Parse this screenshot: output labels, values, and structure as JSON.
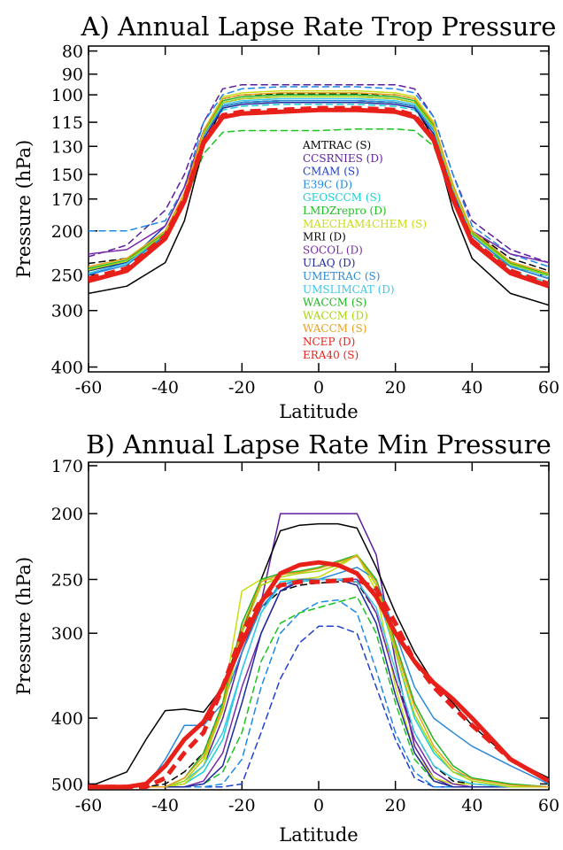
{
  "chart_data": [
    {
      "type": "line",
      "title": "A) Annual Lapse Rate Trop Pressure",
      "xlabel": "Latitude",
      "ylabel": "Pressure (hPa)",
      "xlim": [
        -60,
        60
      ],
      "ylim": [
        410,
        78
      ],
      "yscale": "log",
      "x_ticks": [
        "-60",
        "-40",
        "-20",
        "0",
        "20",
        "40",
        "60"
      ],
      "y_ticks": [
        "80",
        "90",
        "100",
        "115",
        "130",
        "150",
        "170",
        "200",
        "250",
        "300",
        "400"
      ],
      "legend_position": "center",
      "x": [
        -60,
        -50,
        -40,
        -35,
        -30,
        -25,
        -20,
        -10,
        0,
        10,
        20,
        25,
        30,
        35,
        40,
        50,
        60
      ],
      "series": [
        {
          "name": "AMTRAC (S)",
          "color": "#000000",
          "dash": true,
          "values": [
            236,
            230,
            205,
            165,
            120,
            102,
            100,
            99.5,
            99.5,
            99.5,
            100,
            102,
            118,
            160,
            200,
            230,
            245
          ]
        },
        {
          "name": "CCSRNIES (D)",
          "color": "#5a1e9e",
          "dash": true,
          "values": [
            228,
            215,
            180,
            150,
            115,
            97,
            95,
            95,
            95,
            95,
            95,
            97,
            112,
            150,
            190,
            220,
            235
          ]
        },
        {
          "name": "CMAM (S)",
          "color": "#1f3fcc",
          "dash": false,
          "values": [
            250,
            235,
            195,
            160,
            122,
            106,
            104,
            103,
            103,
            103,
            104,
            106,
            120,
            160,
            205,
            240,
            255
          ]
        },
        {
          "name": "E39C (D)",
          "color": "#1e88e5",
          "dash": true,
          "values": [
            200,
            200,
            190,
            160,
            115,
            100,
            97,
            96,
            96,
            96,
            97,
            99,
            112,
            150,
            195,
            225,
            240
          ]
        },
        {
          "name": "GEOSCCM (S)",
          "color": "#18d0d8",
          "dash": true,
          "values": [
            245,
            235,
            205,
            170,
            125,
            108,
            106,
            105,
            105,
            105,
            106,
            108,
            122,
            165,
            210,
            245,
            260
          ]
        },
        {
          "name": "LMDZrepro (D)",
          "color": "#19c41e",
          "dash": true,
          "values": [
            245,
            235,
            210,
            175,
            135,
            121,
            120,
            120,
            120,
            119,
            119,
            120,
            130,
            170,
            210,
            240,
            250
          ]
        },
        {
          "name": "MAECHAM4CHEM (S)",
          "color": "#c8de10",
          "dash": false,
          "values": [
            240,
            230,
            200,
            165,
            120,
            101,
            99,
            98,
            98,
            98,
            99,
            101,
            115,
            160,
            200,
            235,
            250
          ]
        },
        {
          "name": "MRI (D)",
          "color": "#000000",
          "dash": false,
          "values": [
            275,
            265,
            235,
            190,
            130,
            106,
            104,
            103,
            103,
            103,
            104,
            106,
            125,
            180,
            230,
            275,
            292
          ]
        },
        {
          "name": "SOCOL (D)",
          "color": "#7a2aa6",
          "dash": false,
          "values": [
            225,
            220,
            195,
            160,
            120,
            104,
            102,
            101,
            101,
            101,
            102,
            104,
            118,
            160,
            200,
            225,
            235
          ]
        },
        {
          "name": "ULAQ (D)",
          "color": "#1f2a9e",
          "dash": false,
          "values": [
            245,
            235,
            205,
            170,
            125,
            107,
            105,
            104,
            104,
            104,
            105,
            107,
            122,
            165,
            205,
            240,
            255
          ]
        },
        {
          "name": "UMETRAC (S)",
          "color": "#2a8ad8",
          "dash": false,
          "values": [
            250,
            238,
            205,
            168,
            123,
            106,
            104,
            103,
            103,
            103,
            104,
            106,
            120,
            162,
            205,
            240,
            255
          ]
        },
        {
          "name": "UMSLIMCAT (D)",
          "color": "#3cc8e8",
          "dash": false,
          "values": [
            248,
            236,
            203,
            167,
            122,
            105,
            103,
            102,
            102,
            102,
            103,
            105,
            119,
            161,
            204,
            238,
            252
          ]
        },
        {
          "name": "WACCM (S)",
          "color": "#1fb51f",
          "dash": false,
          "values": [
            242,
            232,
            202,
            166,
            121,
            103,
            101,
            100,
            100,
            100,
            101,
            103,
            117,
            158,
            202,
            236,
            250
          ]
        },
        {
          "name": "WACCM (D)",
          "color": "#a8d60c",
          "dash": false,
          "values": [
            244,
            233,
            203,
            167,
            122,
            104,
            102,
            101,
            101,
            101,
            102,
            104,
            118,
            160,
            203,
            237,
            251
          ]
        },
        {
          "name": "WACCM (S)",
          "color": "#e8a020",
          "dash": false,
          "values": [
            240,
            230,
            200,
            165,
            120,
            102,
            100,
            99,
            99,
            99,
            100,
            102,
            116,
            158,
            200,
            234,
            248
          ]
        },
        {
          "name": "NCEP (D)",
          "color": "#e8201a",
          "dash": true,
          "thick": true,
          "values": [
            255,
            242,
            205,
            170,
            127,
            111,
            109,
            108,
            107,
            107,
            108,
            111,
            125,
            168,
            210,
            245,
            262
          ]
        },
        {
          "name": "ERA40 (S)",
          "color": "#e8201a",
          "dash": false,
          "thick": true,
          "values": [
            258,
            245,
            208,
            172,
            128,
            112,
            110,
            109,
            108,
            108,
            109,
            112,
            126,
            170,
            212,
            248,
            265
          ]
        }
      ]
    },
    {
      "type": "line",
      "title": "B) Annual Lapse Rate Min Pressure",
      "xlabel": "Latitude",
      "ylabel": "Pressure (hPa)",
      "xlim": [
        -60,
        60
      ],
      "ylim": [
        510,
        168
      ],
      "yscale": "log",
      "x_ticks": [
        "-60",
        "-40",
        "-20",
        "0",
        "20",
        "40",
        "60"
      ],
      "y_ticks": [
        "170",
        "200",
        "250",
        "300",
        "400",
        "500"
      ],
      "x": [
        -60,
        -50,
        -45,
        -40,
        -35,
        -30,
        -25,
        -20,
        -15,
        -10,
        -5,
        0,
        5,
        10,
        15,
        20,
        25,
        30,
        35,
        40,
        50,
        60
      ],
      "series": [
        {
          "name": "AMTRAC (S)",
          "color": "#000000",
          "dash": true,
          "values": [
            505,
            505,
            505,
            500,
            480,
            450,
            380,
            320,
            275,
            260,
            255,
            253,
            252,
            252,
            280,
            350,
            420,
            470,
            495,
            500,
            505,
            505
          ]
        },
        {
          "name": "CCSRNIES (D)",
          "color": "#5a1e9e",
          "dash": false,
          "values": [
            505,
            505,
            505,
            505,
            500,
            470,
            400,
            320,
            270,
            200,
            200,
            200,
            200,
            200,
            230,
            330,
            440,
            490,
            505,
            505,
            505,
            505
          ]
        },
        {
          "name": "CMAM (S)",
          "color": "#1f3fcc",
          "dash": true,
          "values": [
            505,
            505,
            505,
            505,
            505,
            505,
            505,
            500,
            420,
            350,
            310,
            293,
            293,
            300,
            360,
            430,
            490,
            505,
            505,
            505,
            505,
            505
          ]
        },
        {
          "name": "E39C (D)",
          "color": "#1e88e5",
          "dash": true,
          "values": [
            505,
            505,
            505,
            505,
            505,
            505,
            500,
            460,
            360,
            300,
            280,
            270,
            268,
            280,
            340,
            420,
            480,
            505,
            505,
            505,
            505,
            505
          ]
        },
        {
          "name": "GEOSCCM (S)",
          "color": "#18d0d8",
          "dash": false,
          "values": [
            505,
            505,
            505,
            505,
            500,
            480,
            430,
            340,
            280,
            252,
            250,
            250,
            250,
            250,
            260,
            320,
            400,
            450,
            480,
            490,
            500,
            505
          ]
        },
        {
          "name": "LMDZrepro (D)",
          "color": "#19c41e",
          "dash": true,
          "values": [
            505,
            505,
            505,
            505,
            505,
            500,
            480,
            420,
            330,
            290,
            280,
            275,
            270,
            265,
            300,
            380,
            460,
            495,
            505,
            505,
            505,
            505
          ]
        },
        {
          "name": "MAECHAM4CHEM (S)",
          "color": "#c8de10",
          "dash": false,
          "values": [
            505,
            505,
            505,
            505,
            500,
            470,
            380,
            260,
            250,
            250,
            250,
            248,
            240,
            230,
            260,
            360,
            450,
            490,
            500,
            500,
            505,
            505
          ]
        },
        {
          "name": "MRI (D)",
          "color": "#000000",
          "dash": false,
          "values": [
            505,
            480,
            430,
            390,
            388,
            392,
            360,
            300,
            250,
            212,
            208,
            207,
            207,
            210,
            240,
            280,
            320,
            355,
            380,
            410,
            460,
            490
          ]
        },
        {
          "name": "SOCOL (D)",
          "color": "#7a2aa6",
          "dash": false,
          "values": [
            505,
            505,
            505,
            505,
            505,
            495,
            450,
            360,
            300,
            260,
            250,
            250,
            250,
            250,
            280,
            350,
            430,
            480,
            500,
            505,
            505,
            505
          ]
        },
        {
          "name": "ULAQ (D)",
          "color": "#1f2a9e",
          "dash": false,
          "values": [
            505,
            505,
            505,
            505,
            505,
            500,
            470,
            380,
            300,
            260,
            252,
            250,
            250,
            255,
            290,
            370,
            450,
            495,
            505,
            505,
            505,
            505
          ]
        },
        {
          "name": "UMETRAC (S)",
          "color": "#2a8ad8",
          "dash": false,
          "values": [
            505,
            505,
            505,
            460,
            410,
            410,
            380,
            320,
            275,
            255,
            250,
            250,
            245,
            240,
            250,
            300,
            360,
            400,
            420,
            440,
            470,
            500
          ]
        },
        {
          "name": "UMSLIMCAT (D)",
          "color": "#3cc8e8",
          "dash": false,
          "values": [
            505,
            505,
            505,
            505,
            495,
            470,
            420,
            340,
            280,
            255,
            252,
            250,
            250,
            252,
            275,
            340,
            420,
            470,
            490,
            500,
            505,
            505
          ]
        },
        {
          "name": "WACCM (S)",
          "color": "#1fb51f",
          "dash": false,
          "values": [
            505,
            505,
            505,
            505,
            490,
            450,
            380,
            290,
            250,
            245,
            243,
            240,
            235,
            230,
            250,
            310,
            380,
            430,
            470,
            490,
            500,
            505
          ]
        },
        {
          "name": "WACCM (D)",
          "color": "#a8d60c",
          "dash": false,
          "values": [
            505,
            505,
            505,
            505,
            495,
            460,
            390,
            300,
            255,
            248,
            245,
            243,
            238,
            230,
            255,
            320,
            395,
            445,
            480,
            495,
            505,
            505
          ]
        },
        {
          "name": "WACCM (S)",
          "color": "#e8a020",
          "dash": false,
          "values": [
            505,
            505,
            505,
            505,
            490,
            455,
            385,
            295,
            252,
            246,
            244,
            241,
            236,
            231,
            252,
            315,
            385,
            440,
            475,
            492,
            502,
            505
          ]
        },
        {
          "name": "NCEP (D)",
          "color": "#e8201a",
          "dash": true,
          "thick": true,
          "values": [
            505,
            505,
            505,
            490,
            450,
            420,
            360,
            300,
            268,
            255,
            252,
            252,
            251,
            250,
            258,
            290,
            330,
            360,
            385,
            410,
            460,
            495
          ]
        },
        {
          "name": "ERA40 (S)",
          "color": "#e8201a",
          "dash": false,
          "thick": true,
          "values": [
            505,
            505,
            500,
            470,
            430,
            405,
            360,
            310,
            270,
            245,
            238,
            236,
            238,
            245,
            265,
            300,
            330,
            355,
            375,
            400,
            460,
            495
          ]
        }
      ]
    }
  ]
}
